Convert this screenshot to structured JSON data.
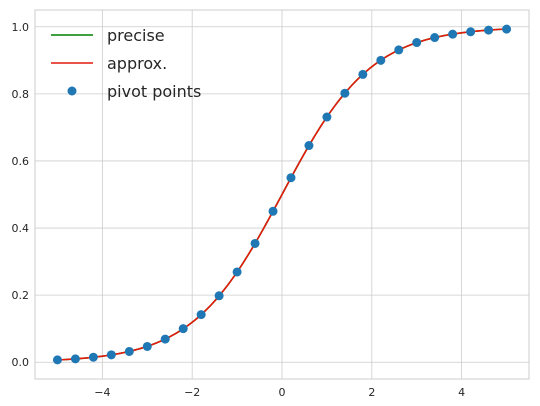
{
  "chart_data": {
    "type": "line",
    "title": "",
    "xlabel": "",
    "ylabel": "",
    "xlim": [
      -5.5,
      5.5
    ],
    "ylim": [
      -0.05,
      1.05
    ],
    "x_ticks": [
      -4,
      -2,
      0,
      2,
      4
    ],
    "x_tick_labels": [
      "−4",
      "−2",
      "0",
      "2",
      "4"
    ],
    "y_ticks": [
      0.0,
      0.2,
      0.4,
      0.6,
      0.8,
      1.0
    ],
    "y_tick_labels": [
      "0.0",
      "0.2",
      "0.4",
      "0.6",
      "0.8",
      "1.0"
    ],
    "grid": true,
    "legend_position": "upper-left",
    "series": [
      {
        "name": "precise",
        "kind": "line",
        "color": "#008000",
        "function": "logistic"
      },
      {
        "name": "approx.",
        "kind": "line",
        "color": "#e31a0c",
        "function": "logistic"
      },
      {
        "name": "pivot points",
        "kind": "scatter",
        "color": "#1f77b4",
        "x": [
          -5.0,
          -4.6,
          -4.2,
          -3.8,
          -3.4,
          -3.0,
          -2.6,
          -2.2,
          -1.8,
          -1.4,
          -1.0,
          -0.6,
          -0.2,
          0.2,
          0.6,
          1.0,
          1.4,
          1.8,
          2.2,
          2.6,
          3.0,
          3.4,
          3.8,
          4.2,
          4.6,
          5.0
        ],
        "y": [
          0.007,
          0.01,
          0.015,
          0.022,
          0.032,
          0.047,
          0.069,
          0.1,
          0.142,
          0.198,
          0.269,
          0.354,
          0.45,
          0.55,
          0.646,
          0.731,
          0.802,
          0.858,
          0.9,
          0.931,
          0.953,
          0.968,
          0.978,
          0.985,
          0.99,
          0.993
        ]
      }
    ]
  }
}
